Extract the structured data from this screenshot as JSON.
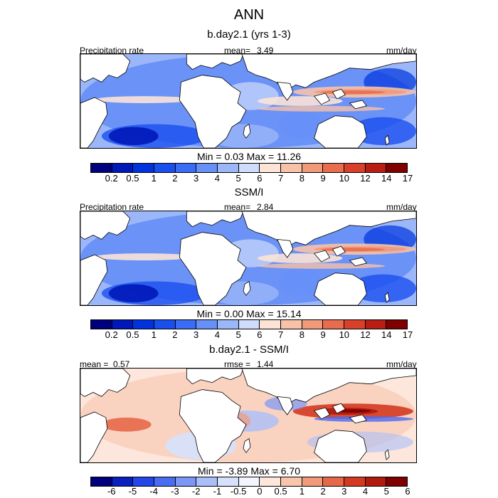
{
  "title": "ANN",
  "panels": [
    {
      "title": "b.day2.1 (yrs 1-3)",
      "left_label": "Precipitation rate",
      "mid_label": "mean=",
      "mid_value": "3.49",
      "units": "mm/day",
      "extrema": "Min =   0.03 Max =  11.26",
      "scale": "abs"
    },
    {
      "title": "SSM/I",
      "left_label": "Precipitation rate",
      "mid_label": "mean=",
      "mid_value": "2.84",
      "units": "mm/day",
      "extrema": "Min =   0.00 Max =  15.14",
      "scale": "abs"
    },
    {
      "title": "b.day2.1 - SSM/I",
      "left_label": "mean =",
      "left_value": "0.57",
      "mid_label": "rmse =",
      "mid_value": "1.44",
      "units": "mm/day",
      "extrema": "Min =  -3.89 Max =   6.70",
      "scale": "diff"
    }
  ],
  "chart_data": [
    {
      "type": "heatmap",
      "title": "b.day2.1 (yrs 1-3)",
      "variable": "Precipitation rate",
      "units": "mm/day",
      "mean": 3.49,
      "min": 0.03,
      "max": 11.26,
      "colorbar_levels": [
        "0.2",
        "0.5",
        "1",
        "2",
        "3",
        "4",
        "5",
        "6",
        "7",
        "8",
        "9",
        "10",
        "12",
        "14",
        "17"
      ]
    },
    {
      "type": "heatmap",
      "title": "SSM/I",
      "variable": "Precipitation rate",
      "units": "mm/day",
      "mean": 2.84,
      "min": 0.0,
      "max": 15.14,
      "colorbar_levels": [
        "0.2",
        "0.5",
        "1",
        "2",
        "3",
        "4",
        "5",
        "6",
        "7",
        "8",
        "9",
        "10",
        "12",
        "14",
        "17"
      ]
    },
    {
      "type": "heatmap",
      "title": "b.day2.1 - SSM/I",
      "units": "mm/day",
      "mean": 0.57,
      "rmse": 1.44,
      "min": -3.89,
      "max": 6.7,
      "colorbar_levels": [
        "-6",
        "-5",
        "-4",
        "-3",
        "-2",
        "-1",
        "-0.5",
        "0",
        "0.5",
        "1",
        "2",
        "3",
        "4",
        "5",
        "6"
      ]
    }
  ],
  "colors": {
    "abs_scale": [
      "#00007f",
      "#0018b8",
      "#0033dd",
      "#1a4fef",
      "#3a6df5",
      "#6690f7",
      "#9bb7f9",
      "#cfdcfb",
      "#fbe3d6",
      "#f7c2a8",
      "#f19a7a",
      "#e86d4e",
      "#d9402a",
      "#b81e14",
      "#7f0000"
    ],
    "diff_scale": [
      "#00007f",
      "#0a1fc0",
      "#2445e8",
      "#4a6cf2",
      "#7b96f6",
      "#aabff9",
      "#d6e1fc",
      "#f4f6ff",
      "#fde7dc",
      "#f9c5ad",
      "#f29a7c",
      "#e76849",
      "#d43a22",
      "#b01a0f",
      "#7f0000"
    ]
  }
}
